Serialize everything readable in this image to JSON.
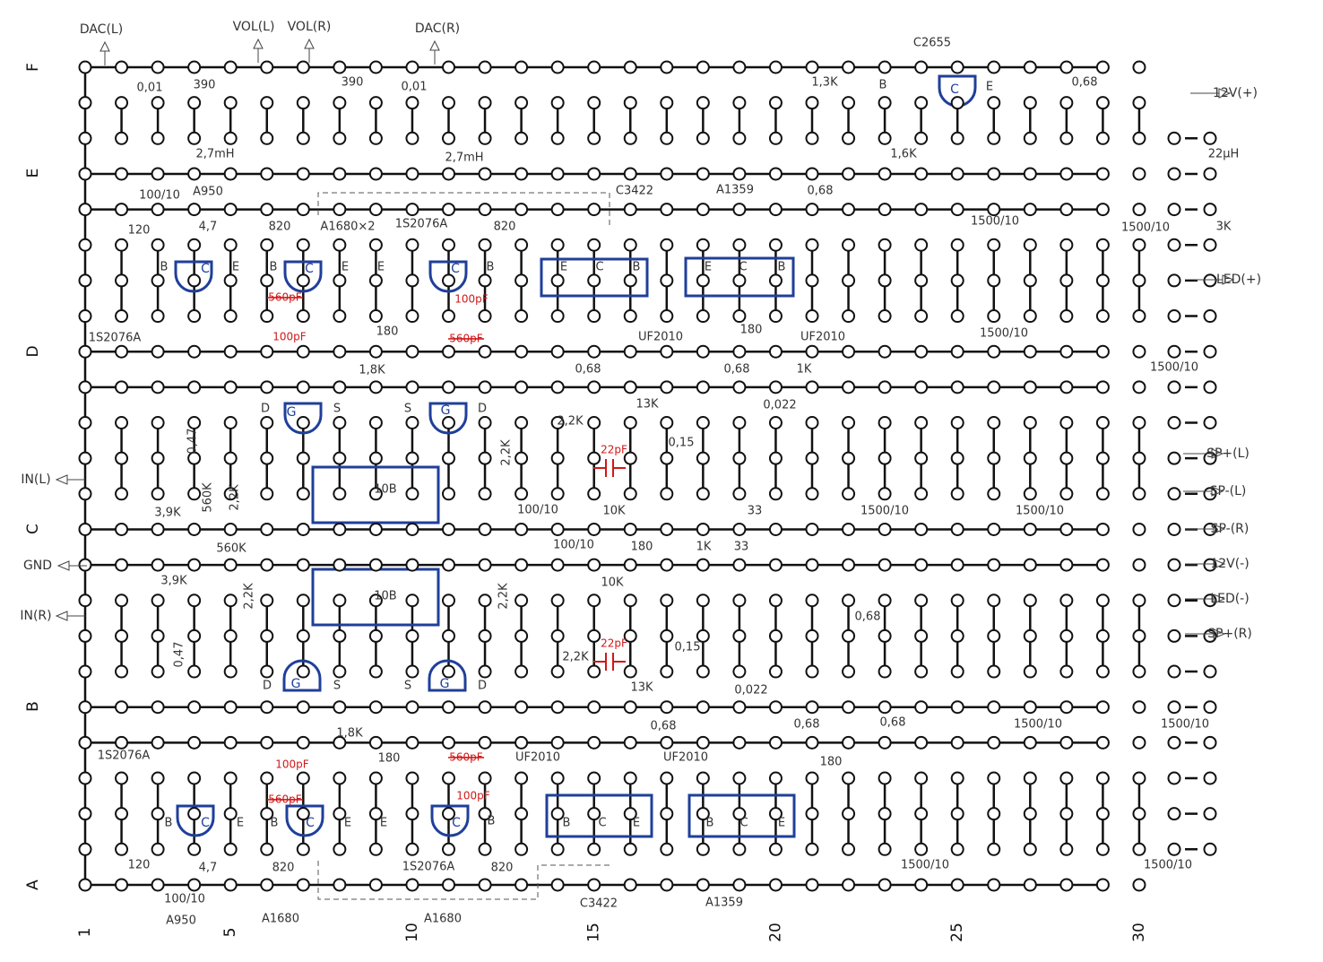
{
  "row_labels": [
    "F",
    "E",
    "D",
    "C",
    "B",
    "A"
  ],
  "column_labels": [
    "1",
    "5",
    "10",
    "15",
    "20",
    "25",
    "30"
  ],
  "ports": [
    "DAC(L)",
    "VOL(L)",
    "VOL(R)",
    "DAC(R)",
    "12V(+)",
    "LED(+)",
    "SP+(L)",
    "SP-(L)",
    "SP-(R)",
    "12V(-)",
    "LED(-)",
    "SP+(R)",
    "IN(L)",
    "GND",
    "IN(R)"
  ],
  "labels": [
    "0,01",
    "390",
    "390",
    "0,01",
    "1,3K",
    "B",
    "E",
    "0,68",
    "C2655",
    "2,7mH",
    "2,7mH",
    "1,6K",
    "22μH",
    "100/10",
    "A950",
    "C3422",
    "A1359",
    "0,68",
    "120",
    "4,7",
    "820",
    "A1680×2",
    "1S2076A",
    "820",
    "1500/10",
    "1500/10",
    "3K",
    "B",
    "E",
    "B",
    "E",
    "E",
    "B",
    "E",
    "C",
    "B",
    "E",
    "C",
    "B",
    "1S2076A",
    "180",
    "UF2010",
    "180",
    "UF2010",
    "1500/10",
    "1500/10",
    "1,8K",
    "0,68",
    "0,68",
    "1K",
    "13K",
    "0,022",
    "D",
    "S",
    "S",
    "D",
    "2,2K",
    "0,47",
    "2,2K",
    "0,15",
    "10B",
    "10K",
    "3,9K",
    "560K",
    "2,2K",
    "100/10",
    "33",
    "1500/10",
    "1500/10",
    "560K",
    "100/10",
    "180",
    "1K",
    "33",
    "3,9K",
    "10K",
    "10B",
    "2,2K",
    "2,2K",
    "0,68",
    "0,47",
    "0,15",
    "2,2K",
    "D",
    "S",
    "S",
    "D",
    "13K",
    "0,022",
    "1,8K",
    "0,68",
    "0,68",
    "0,68",
    "1500/10",
    "1500/10",
    "1S2076A",
    "180",
    "UF2010",
    "UF2010",
    "180",
    "B",
    "E",
    "B",
    "E",
    "E",
    "B",
    "B",
    "C",
    "E",
    "B",
    "C",
    "E",
    "120",
    "4,7",
    "820",
    "1S2076A",
    "820",
    "1500/10",
    "1500/10",
    "100/10",
    "A950",
    "A1680",
    "A1680",
    "C3422",
    "A1359"
  ],
  "blue_labels": [
    "C",
    "C",
    "C",
    "C",
    "G",
    "G",
    "G",
    "G",
    "C",
    "C",
    "C"
  ],
  "red_labels": [
    "100pF",
    "100pF",
    "22pF",
    "22pF",
    "100pF",
    "100pF"
  ],
  "red_struck_labels": [
    "560pF",
    "560pF",
    "560pF",
    "560pF"
  ]
}
